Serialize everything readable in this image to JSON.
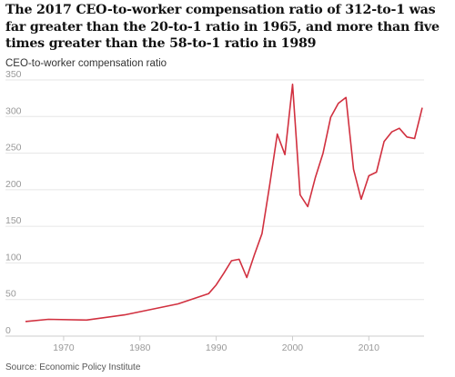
{
  "title": "The 2017 CEO-to-worker compensation ratio of 312-to-1 was far greater than the 20-to-1 ratio in 1965, and more than five times greater than the 58-to-1 ratio in 1989",
  "ylabel": "CEO-to-worker compensation ratio",
  "source": "Source: Economic Policy Institute",
  "colors": {
    "line": "#d1303f",
    "grid": "#e6e6e6",
    "tick": "#999999"
  },
  "chart_data": {
    "type": "line",
    "title": "The 2017 CEO-to-worker compensation ratio of 312-to-1 was far greater than the 20-to-1 ratio in 1965, and more than five times greater than the 58-to-1 ratio in 1989",
    "xlabel": "",
    "ylabel": "CEO-to-worker compensation ratio",
    "xlim": [
      1963,
      2017
    ],
    "ylim": [
      0,
      350
    ],
    "xticks": [
      1970,
      1980,
      1990,
      2000,
      2010
    ],
    "yticks": [
      0,
      50,
      100,
      150,
      200,
      250,
      300,
      350
    ],
    "grid": true,
    "legend": "none",
    "series": [
      {
        "x": [
          1965,
          1968,
          1973,
          1978,
          1985,
          1989,
          1990,
          1991,
          1992,
          1993,
          1994,
          1995,
          1996,
          1997,
          1998,
          1999,
          2000,
          2001,
          2002,
          2003,
          2004,
          2005,
          2006,
          2007,
          2008,
          2009,
          2010,
          2011,
          2012,
          2013,
          2014,
          2015,
          2016,
          2017
        ],
        "y": [
          20,
          23,
          22,
          29,
          44,
          58,
          70,
          86,
          103,
          105,
          80,
          111,
          140,
          206,
          276,
          248,
          344,
          193,
          177,
          217,
          250,
          299,
          318,
          326,
          228,
          187,
          219,
          224,
          266,
          279,
          284,
          272,
          270,
          312
        ]
      }
    ]
  }
}
